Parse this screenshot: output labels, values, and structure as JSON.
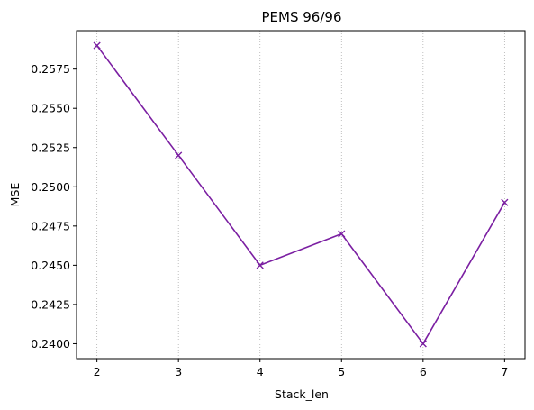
{
  "chart_data": {
    "type": "line",
    "title": "PEMS 96/96",
    "xlabel": "Stack_len",
    "ylabel": "MSE",
    "x": [
      2,
      3,
      4,
      5,
      6,
      7
    ],
    "series": [
      {
        "values": [
          0.259,
          0.252,
          0.245,
          0.247,
          0.24,
          0.249
        ],
        "color": "#7B1FA2",
        "marker": "x"
      }
    ],
    "xlim": [
      1.75,
      7.25
    ],
    "ylim": [
      0.23905,
      0.25995
    ],
    "xticks": [
      2,
      3,
      4,
      5,
      6,
      7
    ],
    "yticks": [
      0.24,
      0.2425,
      0.245,
      0.2475,
      0.25,
      0.2525,
      0.255,
      0.2575
    ],
    "ytick_labels": [
      "0.2400",
      "0.2425",
      "0.2450",
      "0.2475",
      "0.2500",
      "0.2525",
      "0.2550",
      "0.2575"
    ],
    "grid": "vertical dotted at x ticks"
  }
}
